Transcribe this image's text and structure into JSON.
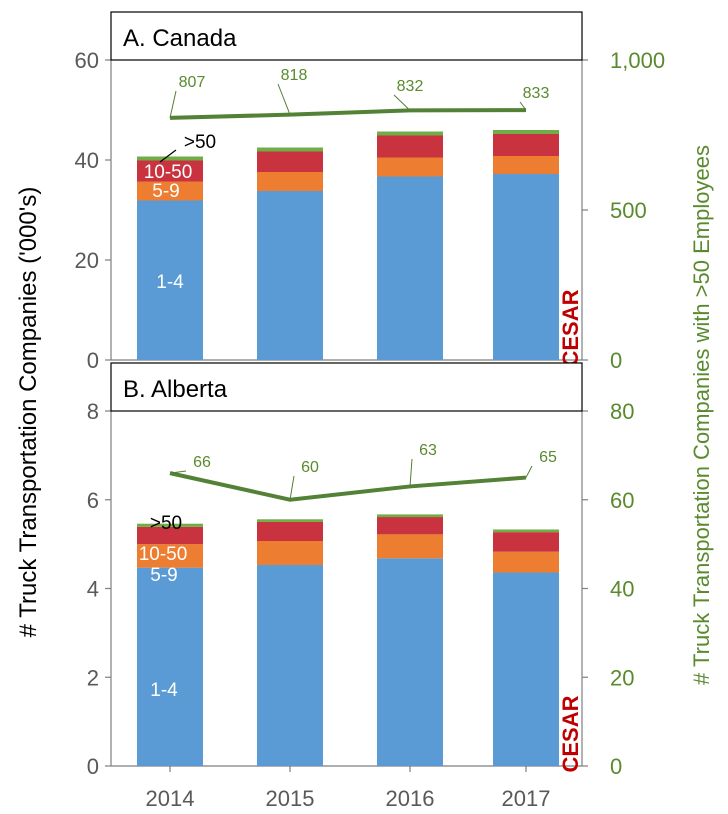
{
  "y_axis_title": "# Truck Transportation  Companies ('000's)",
  "y2_axis_title": "# Truck Transportation  Companies with >50 Employees",
  "logo_text": "CESAR",
  "chart_data": [
    {
      "type": "bar",
      "stacked": true,
      "title": "A. Canada",
      "categories": [
        "2014",
        "2015",
        "2016",
        "2017"
      ],
      "series": [
        {
          "name": "1-4",
          "values": [
            31.9,
            33.8,
            36.7,
            37.2
          ],
          "color": "#5b9bd5"
        },
        {
          "name": "5-9",
          "values": [
            3.8,
            3.8,
            3.8,
            3.6
          ],
          "color": "#ed7d31"
        },
        {
          "name": "10-50",
          "values": [
            4.2,
            4.1,
            4.4,
            4.4
          ],
          "color": "#c9333f"
        },
        {
          "name": ">50",
          "values": [
            0.8,
            0.8,
            0.8,
            0.8
          ],
          "color": "#70ad47"
        }
      ],
      "series_labels": [
        "1-4",
        "5-9",
        "10-50",
        ">50"
      ],
      "ylim": [
        0,
        60
      ],
      "yticks": [
        0,
        20,
        40,
        60
      ],
      "line": {
        "axis": "secondary",
        "values": [
          807,
          818,
          832,
          833
        ],
        "color": "#538135",
        "ylim": [
          0,
          1000
        ],
        "yticks": [
          "0",
          "500",
          "1,000"
        ]
      }
    },
    {
      "type": "bar",
      "stacked": true,
      "title": "B. Alberta",
      "categories": [
        "2014",
        "2015",
        "2016",
        "2017"
      ],
      "series": [
        {
          "name": "1-4",
          "values": [
            4.47,
            4.53,
            4.68,
            4.36
          ],
          "color": "#5b9bd5"
        },
        {
          "name": "5-9",
          "values": [
            0.53,
            0.54,
            0.54,
            0.47
          ],
          "color": "#ed7d31"
        },
        {
          "name": "10-50",
          "values": [
            0.39,
            0.43,
            0.39,
            0.44
          ],
          "color": "#c9333f"
        },
        {
          "name": ">50",
          "values": [
            0.07,
            0.06,
            0.06,
            0.06
          ],
          "color": "#70ad47"
        }
      ],
      "series_labels": [
        "1-4",
        "5-9",
        "10-50",
        ">50"
      ],
      "ylim": [
        0,
        8
      ],
      "yticks": [
        0,
        2,
        4,
        6,
        8
      ],
      "line": {
        "axis": "secondary",
        "values": [
          66,
          60,
          63,
          65
        ],
        "color": "#538135",
        "ylim": [
          0,
          80
        ],
        "yticks": [
          "0",
          "20",
          "40",
          "60",
          "80"
        ]
      }
    }
  ]
}
